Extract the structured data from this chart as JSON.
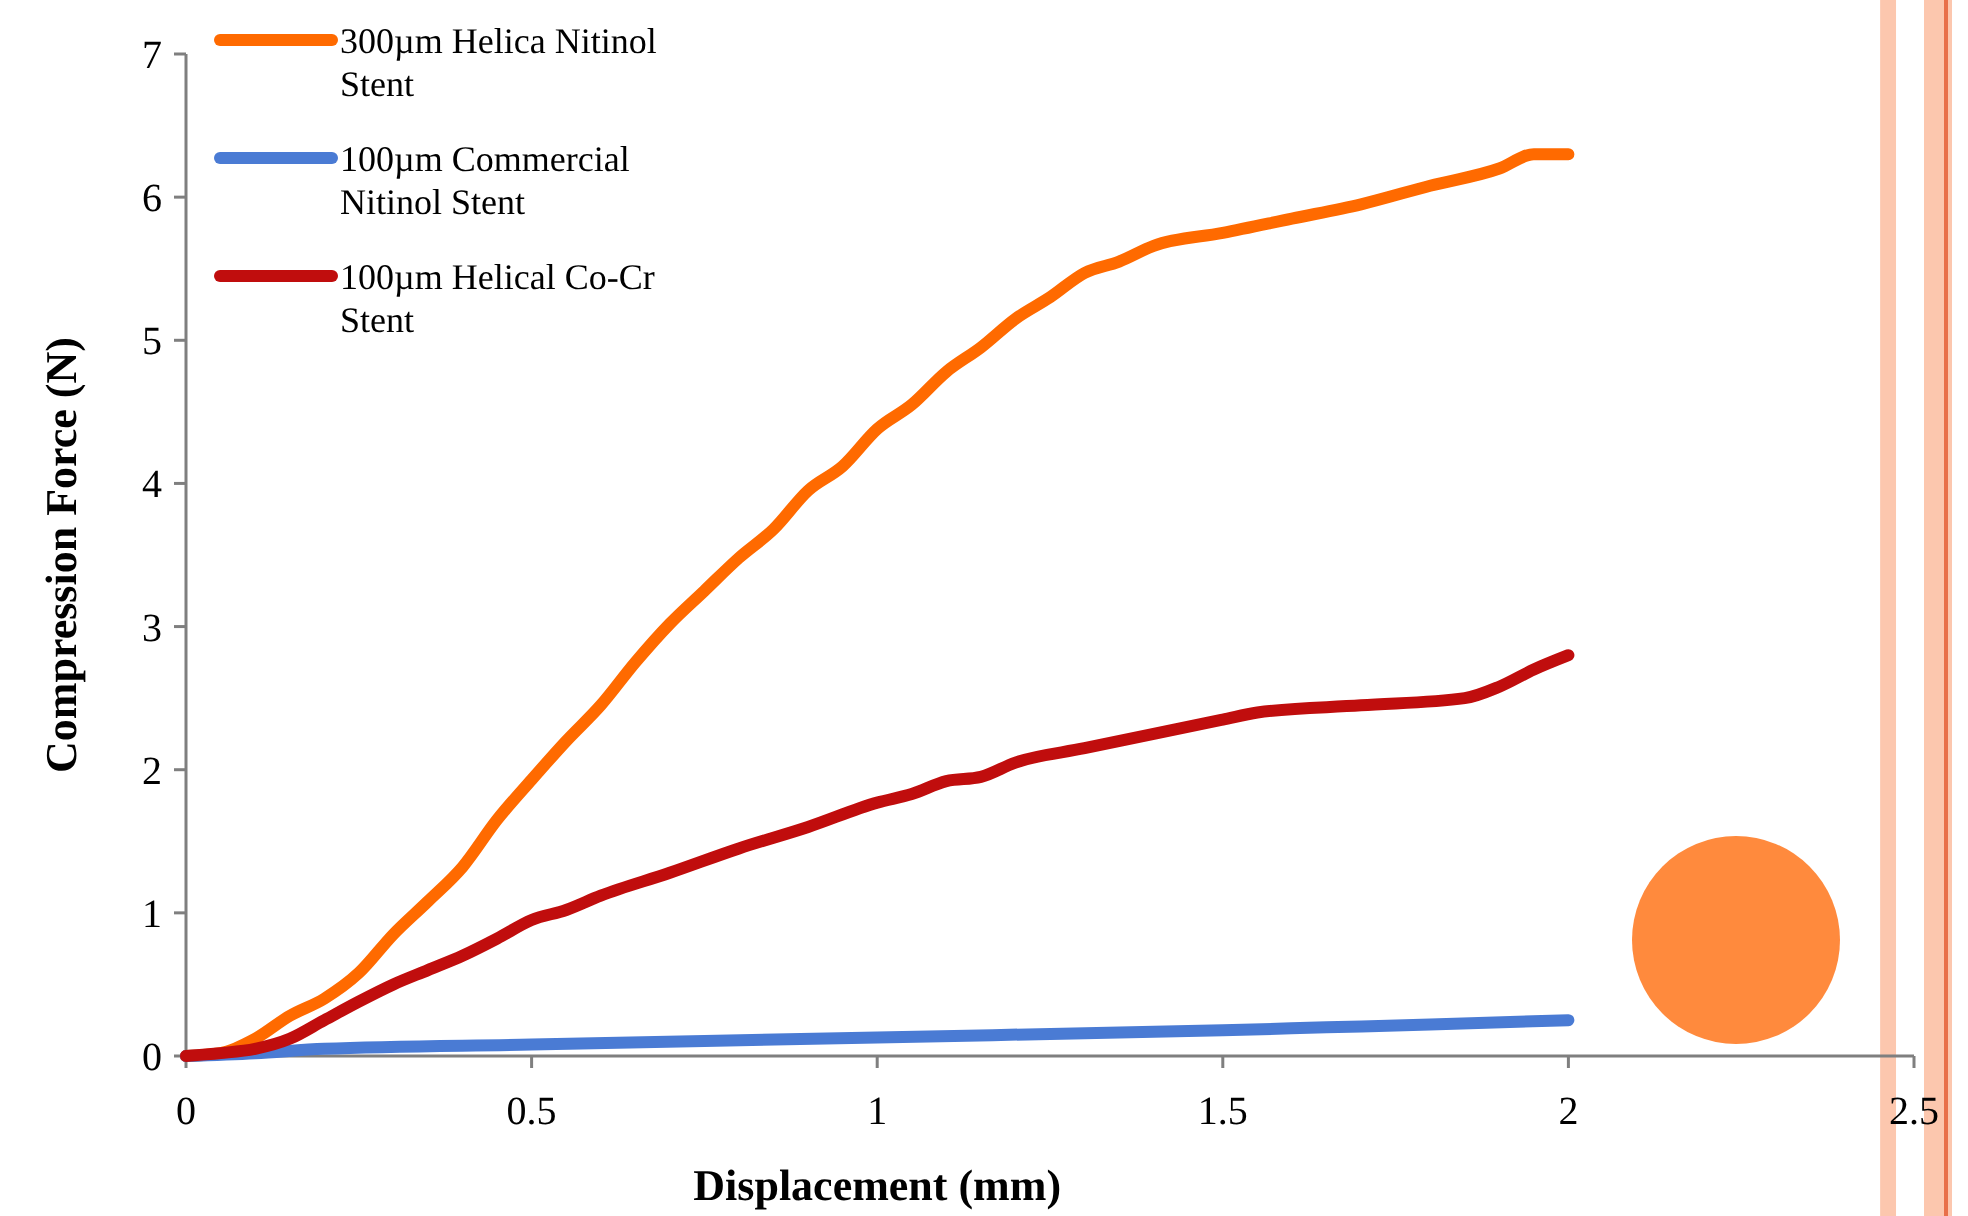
{
  "chart_data": {
    "type": "line",
    "xlabel": "Displacement (mm)",
    "ylabel": "Compression Force (N)",
    "xlim": [
      0,
      2.5
    ],
    "xticks": [
      0,
      0.5,
      1,
      1.5,
      2,
      2.5
    ],
    "ylim": [
      0,
      7
    ],
    "yticks": [
      0,
      1,
      2,
      3,
      4,
      5,
      6,
      7
    ],
    "grid": false,
    "bands": [
      {
        "axis": "x",
        "from": 2.451,
        "to": 2.474,
        "color": "#fcc7ae"
      }
    ],
    "legend": "top left",
    "marker": "none",
    "line_style": "solid",
    "series": [
      {
        "name": "300µm Helica Nitinol Stent",
        "color": "#ff6a00",
        "x": [
          0,
          0.05,
          0.1,
          0.15,
          0.2,
          0.25,
          0.3,
          0.35,
          0.4,
          0.45,
          0.5,
          0.55,
          0.6,
          0.65,
          0.7,
          0.75,
          0.8,
          0.85,
          0.9,
          0.95,
          1.0,
          1.05,
          1.1,
          1.15,
          1.2,
          1.25,
          1.3,
          1.35,
          1.4,
          1.5,
          1.6,
          1.7,
          1.8,
          1.9,
          1.95,
          2.0
        ],
        "values": [
          0,
          0.02,
          0.12,
          0.28,
          0.4,
          0.58,
          0.85,
          1.08,
          1.32,
          1.65,
          1.93,
          2.2,
          2.45,
          2.75,
          3.02,
          3.25,
          3.48,
          3.68,
          3.95,
          4.12,
          4.38,
          4.55,
          4.78,
          4.95,
          5.15,
          5.3,
          5.47,
          5.55,
          5.66,
          5.75,
          5.85,
          5.95,
          6.08,
          6.2,
          6.3,
          6.3
        ]
      },
      {
        "name": "100µm Commercial Nitinol Stent",
        "color": "#4a7bd4",
        "x": [
          0,
          0.1,
          0.2,
          0.5,
          1.0,
          1.5,
          1.65,
          1.8,
          2.0
        ],
        "values": [
          0,
          0.02,
          0.05,
          0.08,
          0.13,
          0.18,
          0.2,
          0.22,
          0.25
        ]
      },
      {
        "name": "100µm Helical Co-Cr Stent",
        "color": "#c00d0d",
        "x": [
          0,
          0.05,
          0.1,
          0.15,
          0.2,
          0.25,
          0.3,
          0.35,
          0.4,
          0.45,
          0.5,
          0.55,
          0.6,
          0.7,
          0.8,
          0.9,
          1.0,
          1.05,
          1.1,
          1.15,
          1.2,
          1.3,
          1.4,
          1.5,
          1.55,
          1.7,
          1.85,
          1.9,
          1.95,
          2.0
        ],
        "values": [
          0,
          0.02,
          0.05,
          0.12,
          0.25,
          0.38,
          0.5,
          0.6,
          0.7,
          0.82,
          0.95,
          1.02,
          1.12,
          1.28,
          1.45,
          1.6,
          1.77,
          1.83,
          1.92,
          1.95,
          2.05,
          2.15,
          2.25,
          2.35,
          2.4,
          2.45,
          2.5,
          2.58,
          2.7,
          2.8
        ]
      }
    ]
  }
}
